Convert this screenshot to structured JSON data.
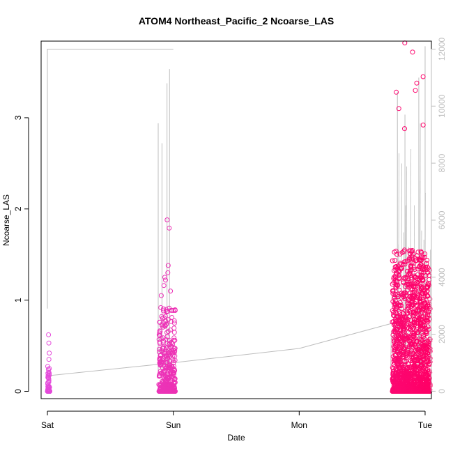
{
  "chart_data": {
    "type": "scatter",
    "title": "ATOM4 Northeast_Pacific_2 Ncoarse_LAS",
    "xlabel": "Date",
    "ylabel": "Ncoarse_LAS",
    "x_ticks": [
      "Sat",
      "Sun",
      "Mon",
      "Tue"
    ],
    "x_range_days": [
      -0.05,
      3.05
    ],
    "ylim": [
      -0.08,
      3.84
    ],
    "y_ticks": [
      0,
      1,
      2,
      3
    ],
    "y2lim": [
      -259,
      12280
    ],
    "y2_ticks": [
      0,
      2000,
      4000,
      6000,
      8000,
      10000,
      12000
    ],
    "grid": false,
    "colors": {
      "series_start": "#e34bdc",
      "series_end": "#ff0066",
      "secondary_line": "#bdbdbd"
    },
    "clusters": [
      {
        "center_day": 0.01,
        "spread_days": 0.02,
        "n_points": 70,
        "zero_fraction": 0.35,
        "typical_max": 0.28,
        "outliers": [
          0.62,
          0.53,
          0.42,
          0.35
        ]
      },
      {
        "center_day": 0.95,
        "spread_days": 0.13,
        "n_points": 420,
        "zero_fraction": 0.18,
        "typical_max": 0.92,
        "outliers": [
          1.88,
          1.79,
          1.38,
          1.3,
          1.25,
          1.22,
          1.16,
          1.1,
          1.05
        ]
      },
      {
        "center_day": 2.89,
        "spread_days": 0.3,
        "n_points": 1600,
        "zero_fraction": 0.12,
        "typical_max": 1.55,
        "outliers": [
          3.82,
          3.72,
          3.45,
          3.38,
          3.3,
          3.28,
          3.1,
          2.92,
          2.88
        ]
      }
    ],
    "secondary_series": {
      "draw": "line",
      "segments": [
        {
          "x_days": [
            0.0,
            0.0,
            0.01,
            0.02,
            0.98,
            1.0
          ],
          "y2": [
            2900,
            12000,
            12000,
            12000,
            12000,
            12000
          ]
        },
        {
          "x_days": [
            0.02,
            1.0,
            2.0,
            2.92
          ],
          "y2": [
            550,
            1000,
            1500,
            2600
          ]
        }
      ],
      "spikes": [
        {
          "x_days": 0.88,
          "y2": 9400
        },
        {
          "x_days": 0.91,
          "y2": 8700
        },
        {
          "x_days": 0.95,
          "y2": 10800
        },
        {
          "x_days": 0.97,
          "y2": 11300
        },
        {
          "x_days": 2.78,
          "y2": 10500
        },
        {
          "x_days": 2.84,
          "y2": 9700
        },
        {
          "x_days": 2.95,
          "y2": 11000
        },
        {
          "x_days": 3.0,
          "y2": 12100
        }
      ]
    }
  }
}
